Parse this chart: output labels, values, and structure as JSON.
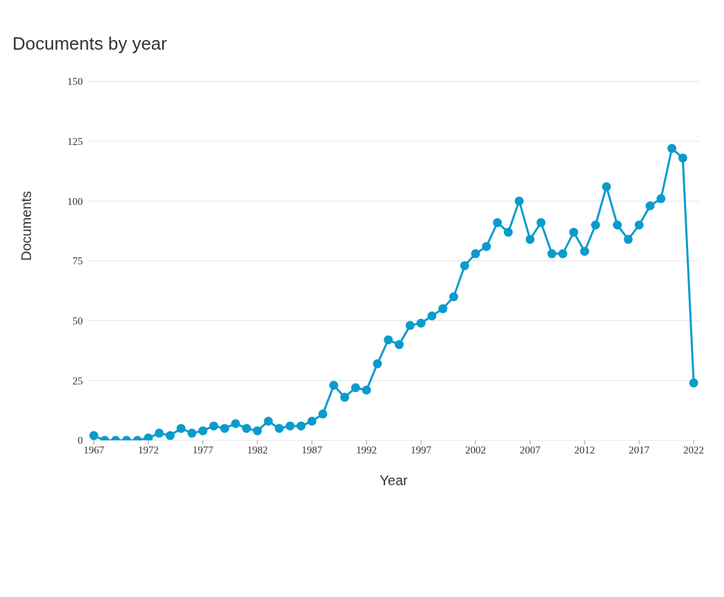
{
  "chart_data": {
    "type": "line",
    "title": "Documents by year",
    "xlabel": "Year",
    "ylabel": "Documents",
    "x": [
      1967,
      1968,
      1969,
      1970,
      1971,
      1972,
      1973,
      1974,
      1975,
      1976,
      1977,
      1978,
      1979,
      1980,
      1981,
      1982,
      1983,
      1984,
      1985,
      1986,
      1987,
      1988,
      1989,
      1990,
      1991,
      1992,
      1993,
      1994,
      1995,
      1996,
      1997,
      1998,
      1999,
      2000,
      2001,
      2002,
      2003,
      2004,
      2005,
      2006,
      2007,
      2008,
      2009,
      2010,
      2011,
      2012,
      2013,
      2014,
      2015,
      2016,
      2017,
      2018,
      2019,
      2020,
      2021,
      2022
    ],
    "series": [
      {
        "color": "#0a9bcd",
        "values": [
          2,
          0,
          0,
          0,
          0,
          1,
          3,
          2,
          5,
          3,
          4,
          6,
          5,
          7,
          5,
          4,
          8,
          5,
          6,
          6,
          8,
          11,
          23,
          18,
          22,
          21,
          32,
          42,
          40,
          48,
          49,
          52,
          55,
          60,
          73,
          78,
          81,
          91,
          87,
          100,
          84,
          91,
          78,
          78,
          87,
          79,
          90,
          106,
          90,
          84,
          90,
          98,
          101,
          122,
          118,
          24
        ]
      }
    ],
    "xlim": [
      1966.5,
      2022.5
    ],
    "xticks": [
      1967,
      1972,
      1977,
      1982,
      1987,
      1992,
      1997,
      2002,
      2007,
      2012,
      2017,
      2022
    ],
    "ylim": [
      0,
      150
    ],
    "yticks": [
      0,
      25,
      50,
      75,
      100,
      125,
      150
    ],
    "grid": "y",
    "marker": "circle",
    "line_style": "solid",
    "legend": false
  }
}
